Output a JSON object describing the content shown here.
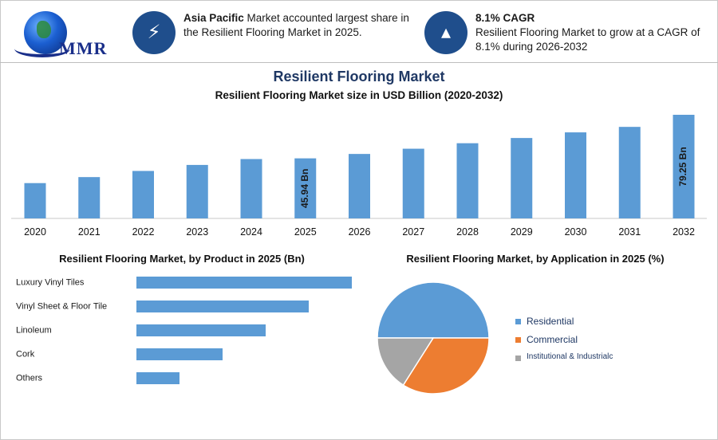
{
  "logo": {
    "text": "MMR"
  },
  "highlights": [
    {
      "icon": "lightning-icon",
      "bold": "Asia Pacific",
      "text": " Market accounted largest share in the Resilient Flooring Market in 2025."
    },
    {
      "icon": "flame-icon",
      "bold": "8.1% CAGR",
      "text": "Resilient Flooring Market to grow at a CAGR of 8.1% during 2026-2032"
    }
  ],
  "main_title": "Resilient Flooring Market",
  "colors": {
    "bar": "#5b9bd5",
    "title": "#1f3864",
    "icon_bg": "#1f4e8c",
    "residential": "#5b9bd5",
    "commercial": "#ed7d31",
    "institutional": "#a5a5a5"
  },
  "chart_data": [
    {
      "type": "bar",
      "title": "Resilient Flooring Market size in USD Billion (2020-2032)",
      "categories": [
        "2020",
        "2021",
        "2022",
        "2023",
        "2024",
        "2025",
        "2026",
        "2027",
        "2028",
        "2029",
        "2030",
        "2031",
        "2032"
      ],
      "values": [
        27.0,
        31.6,
        36.3,
        40.9,
        45.4,
        45.94,
        49.3,
        53.3,
        57.5,
        61.5,
        65.8,
        70.0,
        79.25
      ],
      "data_labels": {
        "5": "45.94 Bn",
        "12": "79.25 Bn"
      },
      "ylim": [
        0,
        90
      ],
      "xlabel": "",
      "ylabel": "",
      "grid": false
    },
    {
      "type": "bar",
      "orientation": "horizontal",
      "title": "Resilient Flooring Market, by Product in 2025 (Bn)",
      "categories": [
        "Luxury Vinyl Tiles",
        "Vinyl Sheet & Floor Tile",
        "Linoleum",
        "Cork",
        "Others"
      ],
      "values": [
        5,
        4,
        3,
        2,
        1
      ],
      "xlim": [
        0,
        5
      ]
    },
    {
      "type": "pie",
      "title": "Resilient Flooring Market, by Application in 2025 (%)",
      "labels": [
        "Residential",
        "Commercial",
        "Institutional & Industrialc"
      ],
      "values": [
        50,
        34,
        16
      ]
    }
  ]
}
